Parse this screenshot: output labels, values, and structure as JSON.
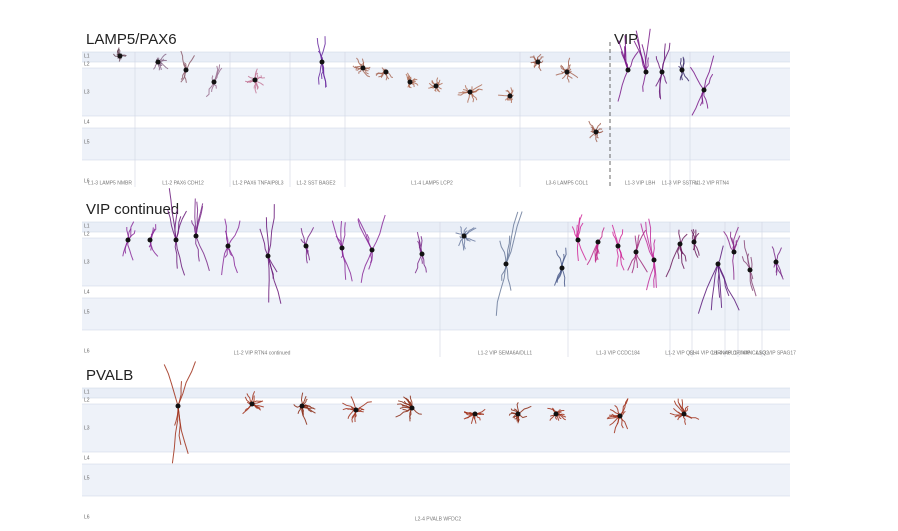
{
  "panels": [
    {
      "titles": [
        "LAMP5/PAX6",
        "VIP"
      ],
      "layers": [
        "L1",
        "L2",
        "L3",
        "L4",
        "L5",
        "L6"
      ],
      "types": [
        "L1-3 LAMP5 NMBR",
        "L1-2 PAX6 CDH12",
        "L1-2 PAX6 TNFAIP8L3",
        "L1-2 SST BAGE2",
        "L1-4 LAMP5 LCP2",
        "L3-6 LAMP5 COL1",
        "L1-3 VIP LBH",
        "L1-3 VIP SSTR4",
        "L1-2 VIP RTN4"
      ]
    },
    {
      "titles": [
        "VIP continued"
      ],
      "layers": [
        "L1",
        "L2",
        "L3",
        "L4",
        "L5",
        "L6"
      ],
      "types": [
        "L1-2 VIP RTN4 continued",
        "L1-2 VIP SEMA6A/DLL1",
        "L1-3 VIP CCDC184",
        "L1-2 VIP QSH",
        "L1-4 VIP CHRNA6",
        "L1-4 VIP CP MAN",
        "L1-3 VIP CASQ2",
        "L1-3 VIP SPAG17"
      ]
    },
    {
      "titles": [
        "PVALB"
      ],
      "layers": [
        "L1",
        "L2",
        "L3",
        "L4",
        "L5",
        "L6"
      ],
      "types": [
        "L2-4 PVALB WFDC2"
      ]
    }
  ]
}
